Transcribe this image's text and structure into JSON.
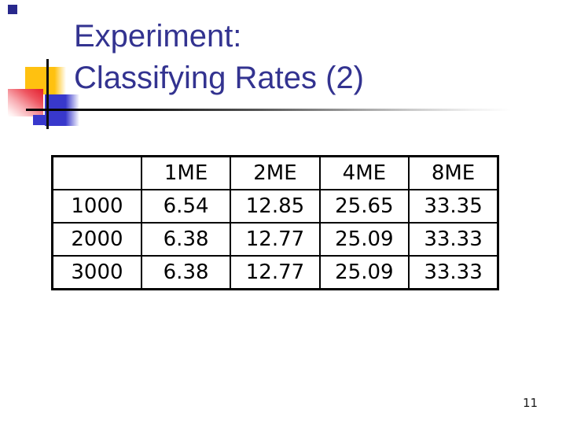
{
  "slide": {
    "title_line1": "Experiment:",
    "title_line2": "Classifying Rates (2)",
    "page_number": "11"
  },
  "table": {
    "columns": [
      "",
      "1ME",
      "2ME",
      "4ME",
      "8ME"
    ],
    "rows": [
      {
        "label": "1000",
        "values": [
          "6.54",
          "12.85",
          "25.65",
          "33.35"
        ]
      },
      {
        "label": "2000",
        "values": [
          "6.38",
          "12.77",
          "25.09",
          "33.33"
        ]
      },
      {
        "label": "3000",
        "values": [
          "6.38",
          "12.77",
          "25.09",
          "33.33"
        ]
      }
    ]
  },
  "colors": {
    "title": "#333390",
    "yellow": "#ffc110",
    "red": "#e31e2d",
    "blue": "#3838cc",
    "navy": "#28288c",
    "border": "#000000"
  }
}
